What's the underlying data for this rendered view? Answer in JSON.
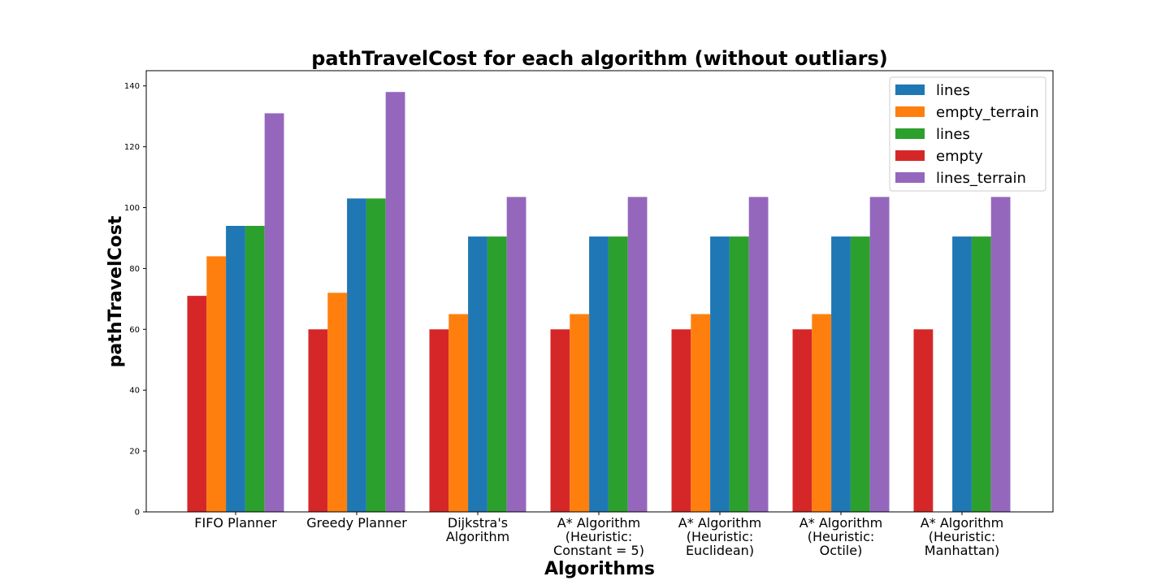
{
  "chart_data": {
    "type": "bar",
    "title": "pathTravelCost for each algorithm (without outliars)",
    "xlabel": "Algorithms",
    "ylabel": "pathTravelCost",
    "ylim": [
      0,
      145
    ],
    "yticks": [
      0,
      20,
      40,
      60,
      80,
      100,
      120,
      140
    ],
    "categories": [
      [
        "FIFO Planner"
      ],
      [
        "Greedy Planner"
      ],
      [
        "Dijkstra's",
        "Algorithm"
      ],
      [
        "A* Algorithm",
        "(Heuristic:",
        "Constant = 5)"
      ],
      [
        "A* Algorithm",
        "(Heuristic:",
        "Euclidean)"
      ],
      [
        "A* Algorithm",
        "(Heuristic:",
        "Octile)"
      ],
      [
        "A* Algorithm",
        "(Heuristic:",
        "Manhattan)"
      ]
    ],
    "series": [
      {
        "name": "empty",
        "color": "#d62728",
        "values": [
          71,
          60,
          60,
          60,
          60,
          60,
          60
        ]
      },
      {
        "name": "empty_terrain",
        "color": "#ff7f0e",
        "values": [
          84,
          72,
          65,
          65,
          65,
          65,
          null
        ]
      },
      {
        "name": "lines",
        "color": "#1f77b4",
        "values": [
          94,
          103,
          90.5,
          90.5,
          90.5,
          90.5,
          90.5
        ]
      },
      {
        "name": "lines",
        "color": "#2ca02c",
        "values": [
          94,
          103,
          90.5,
          90.5,
          90.5,
          90.5,
          90.5
        ]
      },
      {
        "name": "lines_terrain",
        "color": "#9467bd",
        "values": [
          131,
          138,
          103.5,
          103.5,
          103.5,
          103.5,
          103.5
        ]
      }
    ],
    "legend": {
      "position": "top-right",
      "entries": [
        {
          "label": "lines",
          "color": "#1f77b4"
        },
        {
          "label": "empty_terrain",
          "color": "#ff7f0e"
        },
        {
          "label": "lines",
          "color": "#2ca02c"
        },
        {
          "label": "empty",
          "color": "#d62728"
        },
        {
          "label": "lines_terrain",
          "color": "#9467bd"
        }
      ]
    },
    "grid": false
  }
}
